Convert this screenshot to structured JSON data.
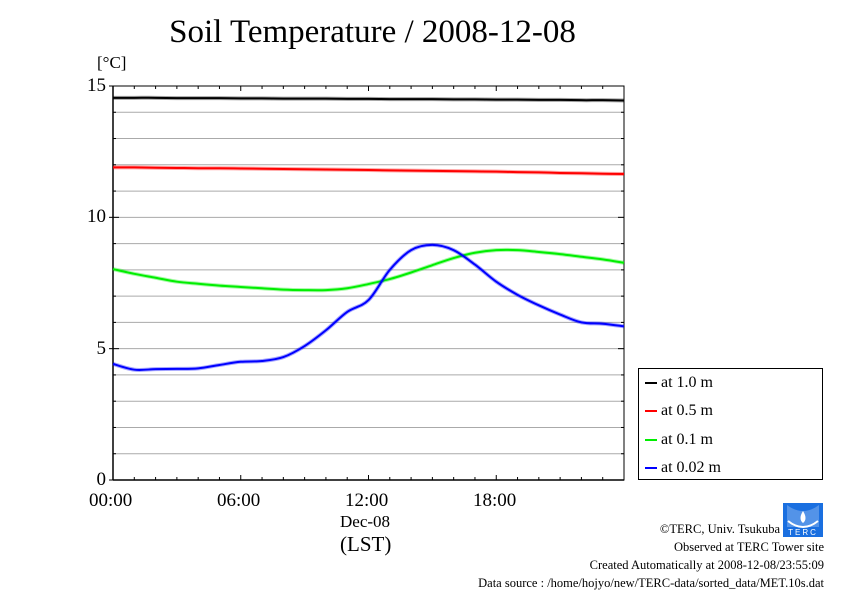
{
  "chart_data": {
    "type": "line",
    "title": "Soil Temperature / 2008-12-08",
    "ylabel": "[°C]",
    "xlabel": "(LST)",
    "x_date_label": "Dec-08",
    "ylim": [
      0,
      15
    ],
    "xlim_hours": [
      0,
      24
    ],
    "yticks": [
      "0",
      "5",
      "10",
      "15"
    ],
    "xticks": [
      "00:00",
      "06:00",
      "12:00",
      "18:00"
    ],
    "grid": true,
    "legend_position": "right-bottom",
    "x_hours": [
      0,
      1,
      2,
      3,
      4,
      5,
      6,
      7,
      8,
      9,
      10,
      11,
      12,
      13,
      14,
      15,
      16,
      17,
      18,
      19,
      20,
      21,
      22,
      23,
      24
    ],
    "series": [
      {
        "name": "at 1.0 m",
        "color": "#000000",
        "values": [
          14.55,
          14.55,
          14.55,
          14.54,
          14.54,
          14.54,
          14.53,
          14.53,
          14.52,
          14.52,
          14.52,
          14.51,
          14.51,
          14.5,
          14.5,
          14.5,
          14.49,
          14.49,
          14.48,
          14.48,
          14.47,
          14.47,
          14.46,
          14.46,
          14.45
        ]
      },
      {
        "name": "at 0.5 m",
        "color": "#ff0000",
        "values": [
          11.9,
          11.9,
          11.89,
          11.88,
          11.87,
          11.87,
          11.86,
          11.85,
          11.84,
          11.83,
          11.82,
          11.81,
          11.8,
          11.79,
          11.78,
          11.77,
          11.76,
          11.75,
          11.74,
          11.72,
          11.71,
          11.69,
          11.68,
          11.66,
          11.65
        ]
      },
      {
        "name": "at 0.1 m",
        "color": "#00ee00",
        "values": [
          8.03,
          7.85,
          7.7,
          7.55,
          7.47,
          7.4,
          7.35,
          7.3,
          7.25,
          7.23,
          7.23,
          7.3,
          7.46,
          7.65,
          7.9,
          8.18,
          8.45,
          8.65,
          8.75,
          8.75,
          8.68,
          8.6,
          8.5,
          8.4,
          8.27
        ]
      },
      {
        "name": "at 0.02 m",
        "color": "#0000ff",
        "values": [
          4.42,
          4.2,
          4.22,
          4.23,
          4.25,
          4.38,
          4.5,
          4.53,
          4.68,
          5.1,
          5.7,
          6.4,
          6.85,
          8.0,
          8.75,
          8.95,
          8.75,
          8.2,
          7.55,
          7.05,
          6.65,
          6.3,
          6.0,
          5.95,
          5.85
        ]
      }
    ]
  },
  "footer": {
    "copyright": "©TERC, Univ. Tsukuba",
    "observed": "Observed at TERC Tower site",
    "created": "Created Automatically at 2008-12-08/23:55:09",
    "source": "Data source : /home/hojyo/new/TERC-data/sorted_data/MET.10s.dat",
    "logo_text": "TERC"
  }
}
